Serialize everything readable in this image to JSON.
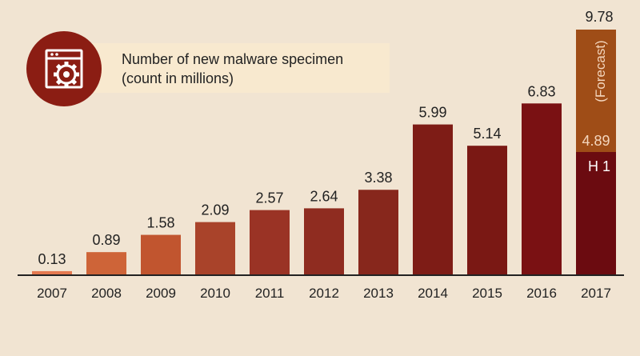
{
  "chart_data": {
    "type": "bar",
    "title": "Number of new malware specimen",
    "subtitle": "(count in millions)",
    "categories": [
      "2007",
      "2008",
      "2009",
      "2010",
      "2011",
      "2012",
      "2013",
      "2014",
      "2015",
      "2016",
      "2017"
    ],
    "values": [
      0.13,
      0.89,
      1.58,
      2.09,
      2.57,
      2.64,
      3.38,
      5.99,
      5.14,
      6.83,
      4.89
    ],
    "value_labels": [
      "0.13",
      "0.89",
      "1.58",
      "2.09",
      "2.57",
      "2.64",
      "3.38",
      "5.99",
      "5.14",
      "6.83",
      "4.89"
    ],
    "forecast": {
      "category": "2017",
      "total": 9.78,
      "total_label": "9.78",
      "actual_label": "H 1",
      "forecast_label": "(Forecast)"
    },
    "ylim": [
      0,
      9.78
    ],
    "xlabel": "",
    "ylabel": "",
    "grid": false,
    "colors": [
      "#e4794f",
      "#ce6438",
      "#c1552f",
      "#a9432a",
      "#9a3325",
      "#8f2c20",
      "#87271c",
      "#7e1c16",
      "#7a1814",
      "#7a1113",
      "#6b0b10"
    ],
    "forecast_color": "#9f4d17",
    "icon": "malware-gear-window-icon",
    "icon_color": "#8b1d13"
  }
}
